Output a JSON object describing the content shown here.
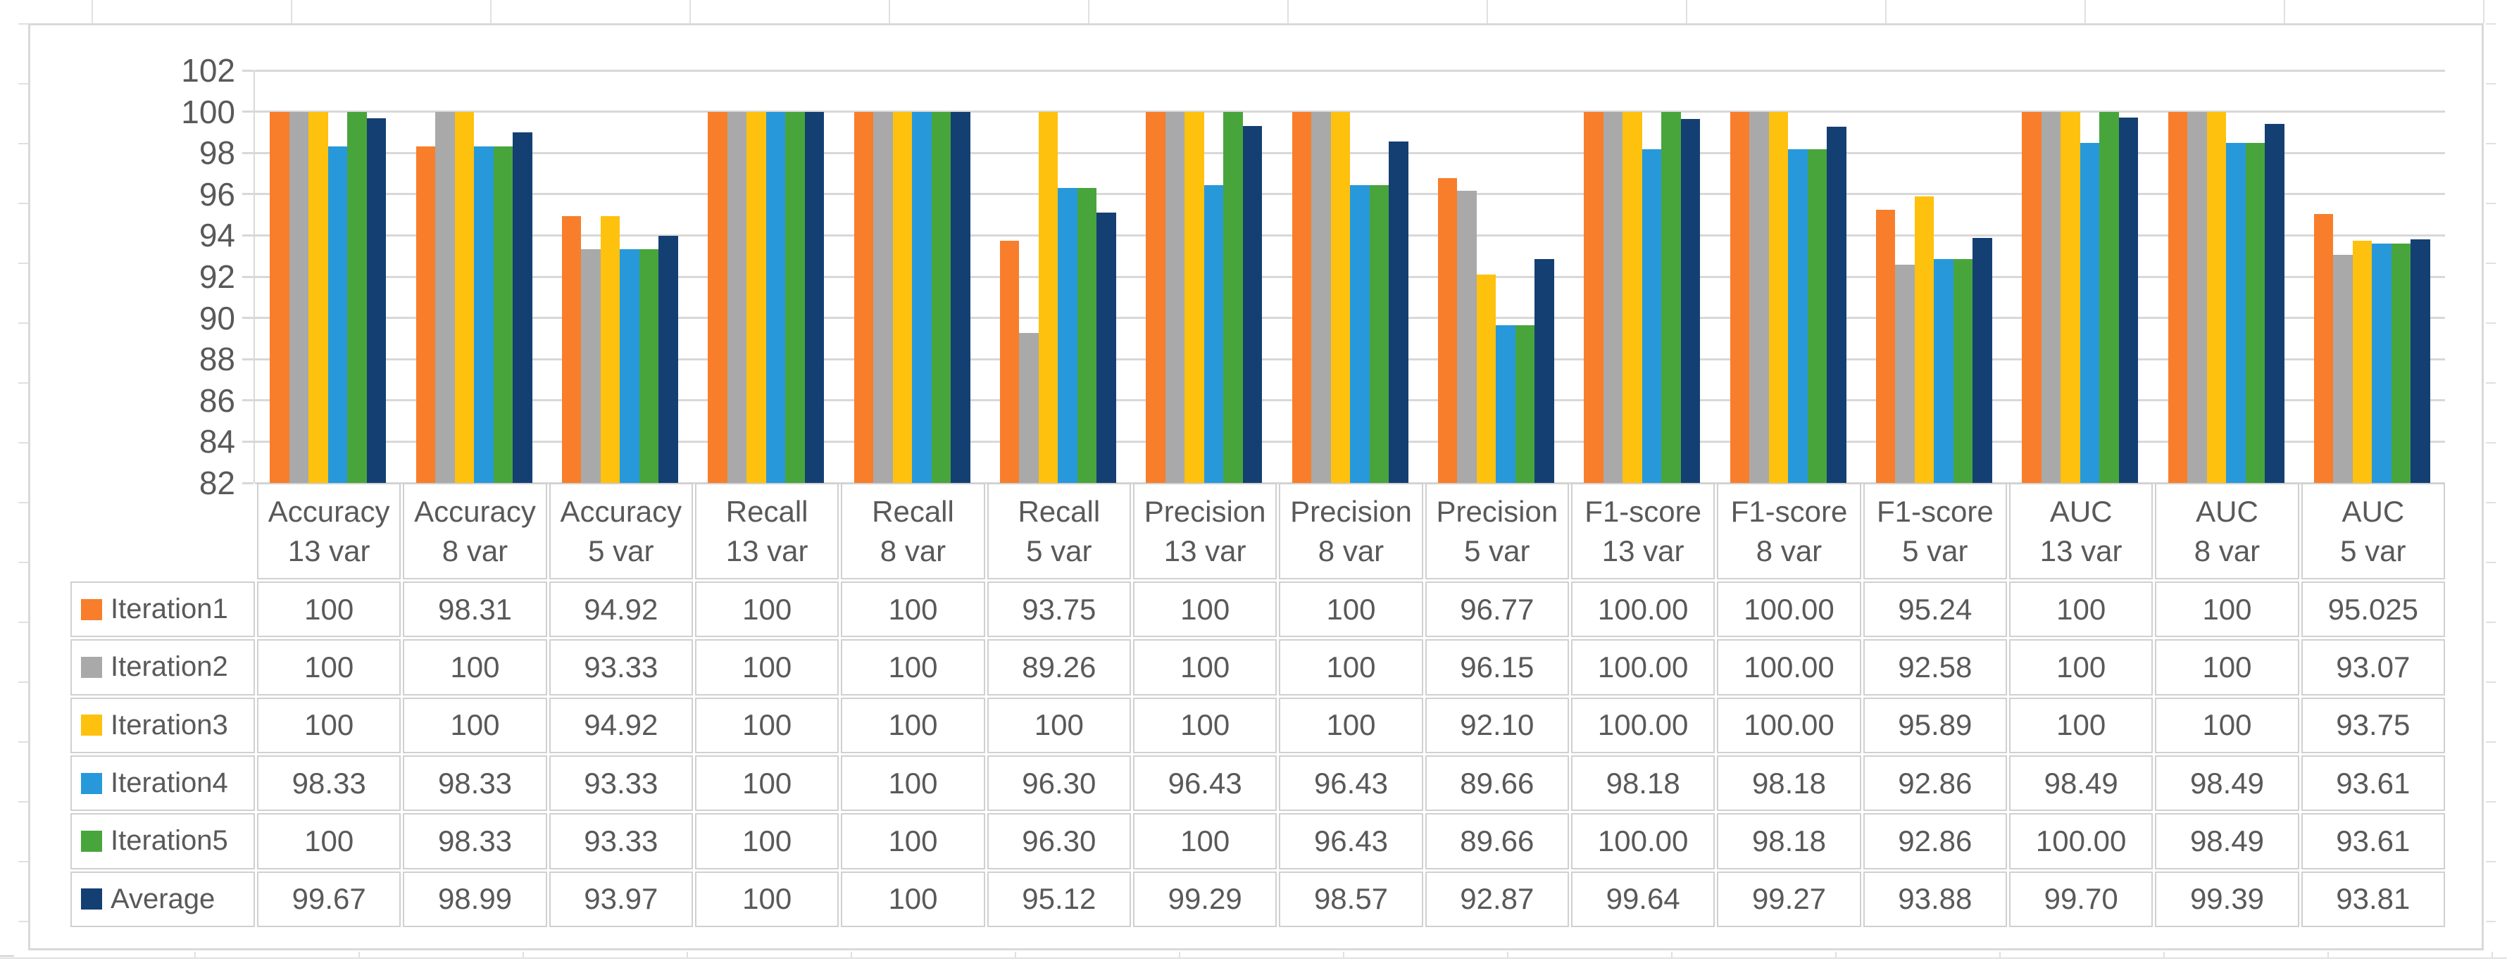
{
  "chart_data": {
    "type": "bar",
    "title": "",
    "xlabel": "",
    "ylabel": "",
    "grid": true,
    "legend_position": "attached-data-table-left",
    "y_axis": {
      "min": 82,
      "max": 102,
      "step": 2,
      "tick_labels": [
        "102",
        "100",
        "98",
        "96",
        "94",
        "92",
        "90",
        "88",
        "86",
        "84",
        "82"
      ]
    },
    "categories": [
      {
        "metric": "Accuracy",
        "vars": "13 var"
      },
      {
        "metric": "Accuracy",
        "vars": "8 var"
      },
      {
        "metric": "Accuracy",
        "vars": "5 var"
      },
      {
        "metric": "Recall",
        "vars": "13 var"
      },
      {
        "metric": "Recall",
        "vars": "8 var"
      },
      {
        "metric": "Recall",
        "vars": "5 var"
      },
      {
        "metric": "Precision",
        "vars": "13 var"
      },
      {
        "metric": "Precision",
        "vars": "8 var"
      },
      {
        "metric": "Precision",
        "vars": "5 var"
      },
      {
        "metric": "F1-score",
        "vars": "13 var"
      },
      {
        "metric": "F1-score",
        "vars": "8 var"
      },
      {
        "metric": "F1-score",
        "vars": "5 var"
      },
      {
        "metric": "AUC",
        "vars": "13 var"
      },
      {
        "metric": "AUC",
        "vars": "8 var"
      },
      {
        "metric": "AUC",
        "vars": "5 var"
      }
    ],
    "series": [
      {
        "name": "Iteration1",
        "color": "#F87E2B",
        "values": [
          "100",
          "98.31",
          "94.92",
          "100",
          "100",
          "93.75",
          "100",
          "100",
          "96.77",
          "100.00",
          "100.00",
          "95.24",
          "100",
          "100",
          "95.025"
        ]
      },
      {
        "name": "Iteration2",
        "color": "#A9A9A9",
        "values": [
          "100",
          "100",
          "93.33",
          "100",
          "100",
          "89.26",
          "100",
          "100",
          "96.15",
          "100.00",
          "100.00",
          "92.58",
          "100",
          "100",
          "93.07"
        ]
      },
      {
        "name": "Iteration3",
        "color": "#FEC10E",
        "values": [
          "100",
          "100",
          "94.92",
          "100",
          "100",
          "100",
          "100",
          "100",
          "92.10",
          "100.00",
          "100.00",
          "95.89",
          "100",
          "100",
          "93.75"
        ]
      },
      {
        "name": "Iteration4",
        "color": "#2799DB",
        "values": [
          "98.33",
          "98.33",
          "93.33",
          "100",
          "100",
          "96.30",
          "96.43",
          "96.43",
          "89.66",
          "98.18",
          "98.18",
          "92.86",
          "98.49",
          "98.49",
          "93.61"
        ]
      },
      {
        "name": "Iteration5",
        "color": "#48A53C",
        "values": [
          "100",
          "98.33",
          "93.33",
          "100",
          "100",
          "96.30",
          "100",
          "96.43",
          "89.66",
          "100.00",
          "98.18",
          "92.86",
          "100.00",
          "98.49",
          "93.61"
        ]
      },
      {
        "name": "Average",
        "color": "#143F73",
        "values": [
          "99.67",
          "98.99",
          "93.97",
          "100",
          "100",
          "95.12",
          "99.29",
          "98.57",
          "92.87",
          "99.64",
          "99.27",
          "93.88",
          "99.70",
          "99.39",
          "93.81"
        ]
      }
    ]
  }
}
